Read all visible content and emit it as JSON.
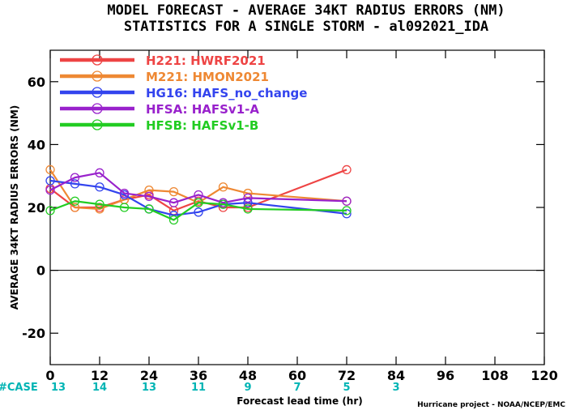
{
  "chart_data": {
    "type": "line",
    "title": "MODEL FORECAST - AVERAGE 34KT RADIUS ERRORS (NM)",
    "subtitle": "STATISTICS FOR A SINGLE STORM - al092021_IDA",
    "xlabel": "Forecast lead time (hr)",
    "ylabel": "AVERAGE 34KT RADIUS ERRORS (NM)",
    "xlim": [
      0,
      120
    ],
    "ylim": [
      -30,
      70
    ],
    "xticks": [
      0,
      12,
      24,
      36,
      48,
      60,
      72,
      84,
      96,
      108,
      120
    ],
    "yticks": [
      -20,
      0,
      20,
      40,
      60
    ],
    "zero_line": 0,
    "grid": false,
    "legend_position": "top-left",
    "credit": "Hurricane project - NOAA/NCEP/EMC",
    "case_label": "#CASE",
    "case_color": "#00b4b4",
    "cases": [
      {
        "x": 0,
        "n": "13"
      },
      {
        "x": 12,
        "n": "14"
      },
      {
        "x": 24,
        "n": "13"
      },
      {
        "x": 36,
        "n": "11"
      },
      {
        "x": 48,
        "n": "9"
      },
      {
        "x": 60,
        "n": "7"
      },
      {
        "x": 72,
        "n": "5"
      },
      {
        "x": 84,
        "n": "3"
      }
    ],
    "series": [
      {
        "name": "H221: HWRF2021",
        "color": "#ee4444",
        "x": [
          0,
          6,
          12,
          18,
          24,
          30,
          36,
          42,
          48,
          72
        ],
        "y": [
          26,
          20,
          20,
          22.5,
          24,
          19,
          22,
          20,
          20,
          32
        ]
      },
      {
        "name": "M221: HMON2021",
        "color": "#ee8833",
        "x": [
          0,
          6,
          12,
          18,
          24,
          30,
          36,
          42,
          48,
          72
        ],
        "y": [
          32,
          20,
          19.5,
          22.5,
          25.5,
          25,
          21.5,
          26.5,
          24.5,
          22
        ]
      },
      {
        "name": "HG16: HAFS_no_change",
        "color": "#3344ee",
        "x": [
          0,
          6,
          12,
          18,
          24,
          30,
          36,
          42,
          48,
          72
        ],
        "y": [
          28.5,
          27.5,
          26.5,
          24,
          19.5,
          17.5,
          18.5,
          21,
          21.5,
          18
        ]
      },
      {
        "name": "HFSA: HAFSv1-A",
        "color": "#9922cc",
        "x": [
          0,
          6,
          12,
          18,
          24,
          30,
          36,
          42,
          48,
          72
        ],
        "y": [
          25.5,
          29.5,
          31,
          24.5,
          23.5,
          21.5,
          24,
          21.5,
          23,
          22
        ]
      },
      {
        "name": "HFSB: HAFSv1-B",
        "color": "#22cc22",
        "x": [
          0,
          6,
          12,
          18,
          24,
          30,
          36,
          42,
          48,
          72
        ],
        "y": [
          19,
          22,
          21,
          20,
          19.5,
          16,
          21.5,
          21,
          19.5,
          19
        ]
      }
    ]
  }
}
